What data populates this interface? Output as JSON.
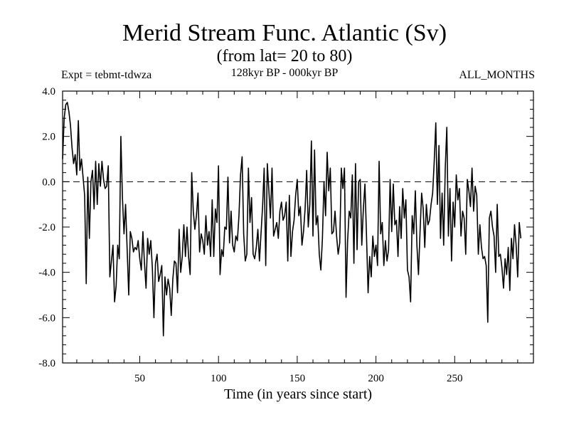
{
  "chart_data": {
    "type": "line",
    "title": "Merid Stream Func. Atlantic (Sv)",
    "subtitle": "(from lat= 20 to 80)",
    "experiment": "Expt = tebmt-tdwza",
    "period": "128kyr BP - 000kyr BP",
    "months": "ALL_MONTHS",
    "xlabel": "Time (in years since start)",
    "ylabel": "",
    "xlim": [
      1,
      300
    ],
    "ylim": [
      -8.0,
      4.0
    ],
    "xticks": [
      50,
      100,
      150,
      200,
      250
    ],
    "xtick_labels": [
      "50",
      "100",
      "150",
      "200",
      "250"
    ],
    "yticks": [
      -8,
      -6,
      -4,
      -2,
      0,
      2,
      4
    ],
    "ytick_labels": [
      "-8.0",
      "-6.0",
      "-4.0",
      "-2.0",
      "0.0",
      "2.0",
      "4.0"
    ],
    "reference_line": 0.0,
    "series": [
      {
        "name": "Merid Stream Func. Atlantic",
        "x_start": 1,
        "x_step": 1,
        "values": [
          1.0,
          2.8,
          3.4,
          3.5,
          3.1,
          2.5,
          1.5,
          0.8,
          1.2,
          0.3,
          2.7,
          0.5,
          1.0,
          0.2,
          -0.6,
          -4.5,
          0.2,
          -2.5,
          0.0,
          0.5,
          -1.2,
          0.9,
          -1.0,
          0.8,
          -0.2,
          0.9,
          0.1,
          -0.3,
          -0.2,
          0.7,
          -4.2,
          -3.5,
          -2.8,
          -5.3,
          -4.6,
          -2.8,
          -3.4,
          2.0,
          -0.7,
          -2.3,
          -1.0,
          -3.0,
          -5.0,
          -2.2,
          -2.5,
          -3.1,
          -2.9,
          -3.0,
          -2.6,
          -3.4,
          -3.9,
          -2.2,
          -3.6,
          -4.7,
          -2.5,
          -3.2,
          -2.6,
          -3.8,
          -6.0,
          -3.6,
          -3.2,
          -4.4,
          -4.1,
          -3.7,
          -6.8,
          -4.2,
          -5.0,
          -4.3,
          -4.7,
          -5.9,
          -4.3,
          -3.5,
          -3.6,
          -4.9,
          -2.1,
          -4.0,
          -3.3,
          -1.9,
          -3.3,
          -2.0,
          -3.3,
          -4.1,
          0.4,
          -1.3,
          -2.1,
          -1.5,
          -0.5,
          -3.1,
          -2.3,
          -2.6,
          -3.2,
          -1.5,
          -2.8,
          -2.2,
          -3.3,
          -0.8,
          -3.3,
          -1.2,
          -1.8,
          0.7,
          -4.1,
          -3.0,
          -3.3,
          -2.0,
          -2.1,
          0.2,
          -2.7,
          -1.3,
          -2.8,
          -3.1,
          -2.4,
          -2.6,
          -1.5,
          0.3,
          1.1,
          -2.3,
          -3.5,
          -3.2,
          0.6,
          -1.8,
          -0.7,
          -3.2,
          -3.4,
          -2.9,
          -2.1,
          -3.5,
          -2.3,
          -1.1,
          0.6,
          -3.7,
          0.8,
          -0.4,
          -1.6,
          0.6,
          -2.4,
          -2.1,
          -1.8,
          -2.5,
          -1.3,
          -0.9,
          -1.7,
          -1.5,
          -0.9,
          -3.5,
          -0.6,
          -3.3,
          -2.2,
          -1.7,
          -0.6,
          0.1,
          -1.5,
          -1.1,
          -2.8,
          -2.2,
          -1.2,
          0.5,
          -2.0,
          -1.0,
          1.8,
          -2.4,
          1.4,
          -1.9,
          -1.5,
          -3.2,
          -3.9,
          -2.5,
          0.0,
          -1.5,
          1.3,
          -0.4,
          0.6,
          -2.3,
          -2.2,
          -1.3,
          -2.4,
          -3.2,
          -2.7,
          0.6,
          -0.3,
          0.6,
          -5.1,
          -2.6,
          -1.3,
          -1.6,
          0.3,
          -3.6,
          0.8,
          -3.0,
          0.0,
          0.1,
          -2.8,
          -1.2,
          -0.1,
          -2.4,
          -4.9,
          -3.3,
          -4.2,
          -2.4,
          -3.3,
          -2.8,
          -3.7,
          0.9,
          -2.3,
          -1.8,
          -3.7,
          -2.6,
          -3.5,
          -3.0,
          0.1,
          -2.2,
          -0.1,
          -1.9,
          -1.7,
          -3.3,
          -1.1,
          -2.5,
          -0.3,
          -1.6,
          -0.8,
          -3.9,
          -4.2,
          -5.3,
          -1.5,
          -2.3,
          -0.4,
          -2.8,
          -4.1,
          -2.2,
          -0.5,
          -1.2,
          -2.9,
          -1.0,
          -1.9,
          -1.7,
          -1.0,
          -0.5,
          0.9,
          2.6,
          -1.0,
          1.6,
          -2.5,
          -0.5,
          -2.8,
          0.6,
          2.4,
          -2.4,
          -0.3,
          -3.5,
          -0.9,
          -2.0,
          0.3,
          -0.8,
          -0.3,
          -2.4,
          -1.3,
          -1.6,
          -3.2,
          0.1,
          -0.4,
          -1.1,
          0.6,
          -1.3,
          -0.2,
          -0.6,
          -3.2,
          -1.9,
          -2.9,
          -3.4,
          -3.3,
          -3.7,
          -6.2,
          -1.6,
          -1.3,
          -2.0,
          -2.4,
          -4.0,
          -1.0,
          -3.3,
          -3.2,
          -3.8,
          -4.7,
          -3.4,
          -4.1,
          -2.9,
          -4.8,
          -2.5,
          -3.4,
          -1.9,
          -2.8,
          -4.2,
          -1.8,
          -2.5
        ]
      }
    ]
  }
}
